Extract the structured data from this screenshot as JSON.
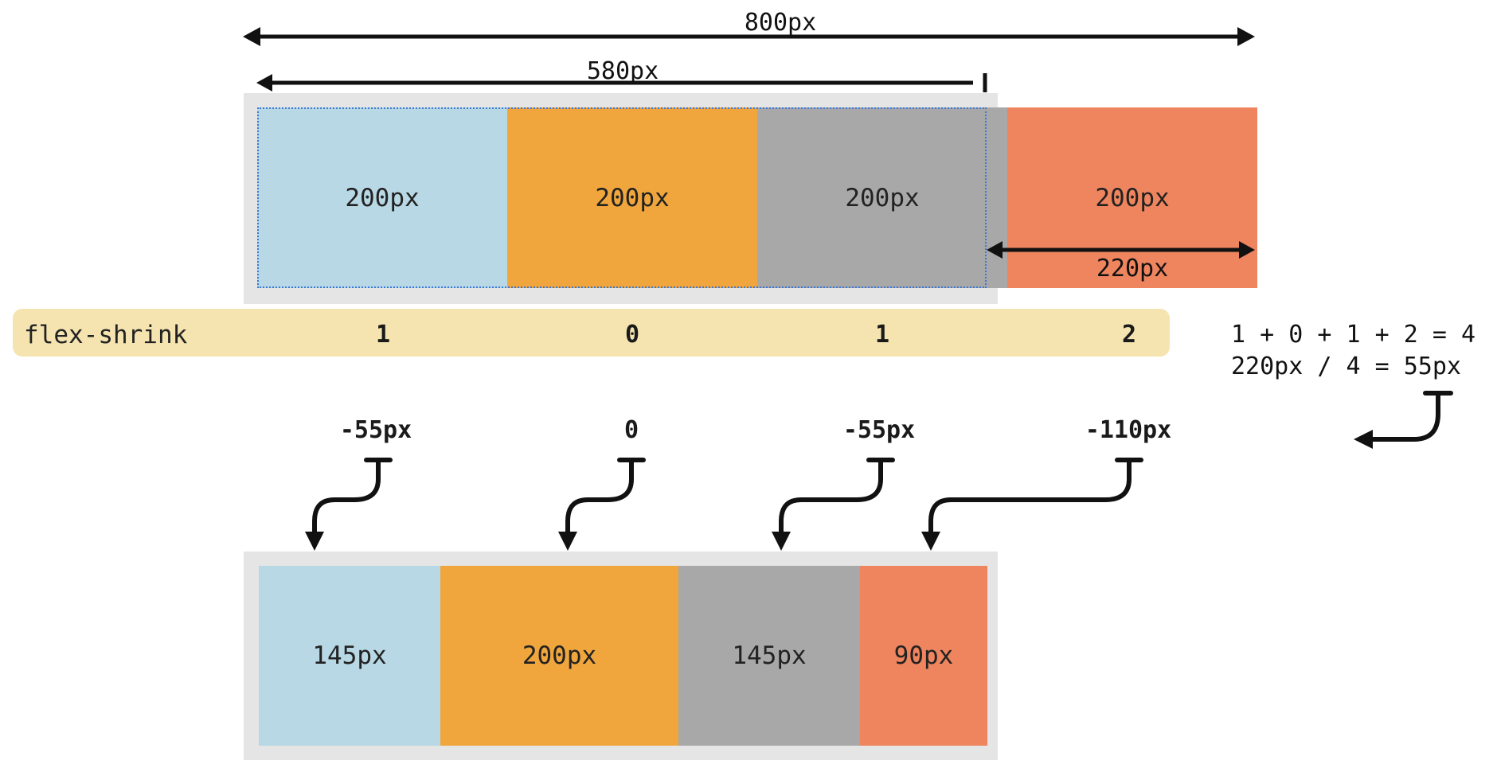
{
  "colors": {
    "light_blue": "#b7d8e4",
    "orange": "#f0a63c",
    "gray": "#a8a8a8",
    "salmon": "#ee855e",
    "container": "#e5e5e5",
    "flex_shrink_band": "#f5e4b0",
    "dashed_outline": "#3a78d8"
  },
  "dimensions": {
    "total": "800px",
    "container": "580px",
    "overflow": "220px"
  },
  "before": {
    "items": [
      {
        "label": "200px",
        "color": "light_blue"
      },
      {
        "label": "200px",
        "color": "orange"
      },
      {
        "label": "200px",
        "color": "gray"
      },
      {
        "label": "200px",
        "color": "salmon"
      }
    ]
  },
  "flex_shrink": {
    "label": "flex-shrink",
    "values": [
      "1",
      "0",
      "1",
      "2"
    ]
  },
  "calculation": {
    "line1": "1 + 0 + 1 + 2 = 4",
    "line2": "220px / 4 = 55px"
  },
  "deltas": [
    "-55px",
    "0",
    "-55px",
    "-110px"
  ],
  "after": {
    "items": [
      {
        "label": "145px",
        "color": "light_blue"
      },
      {
        "label": "200px",
        "color": "orange"
      },
      {
        "label": "145px",
        "color": "gray"
      },
      {
        "label": "90px",
        "color": "salmon"
      }
    ]
  }
}
